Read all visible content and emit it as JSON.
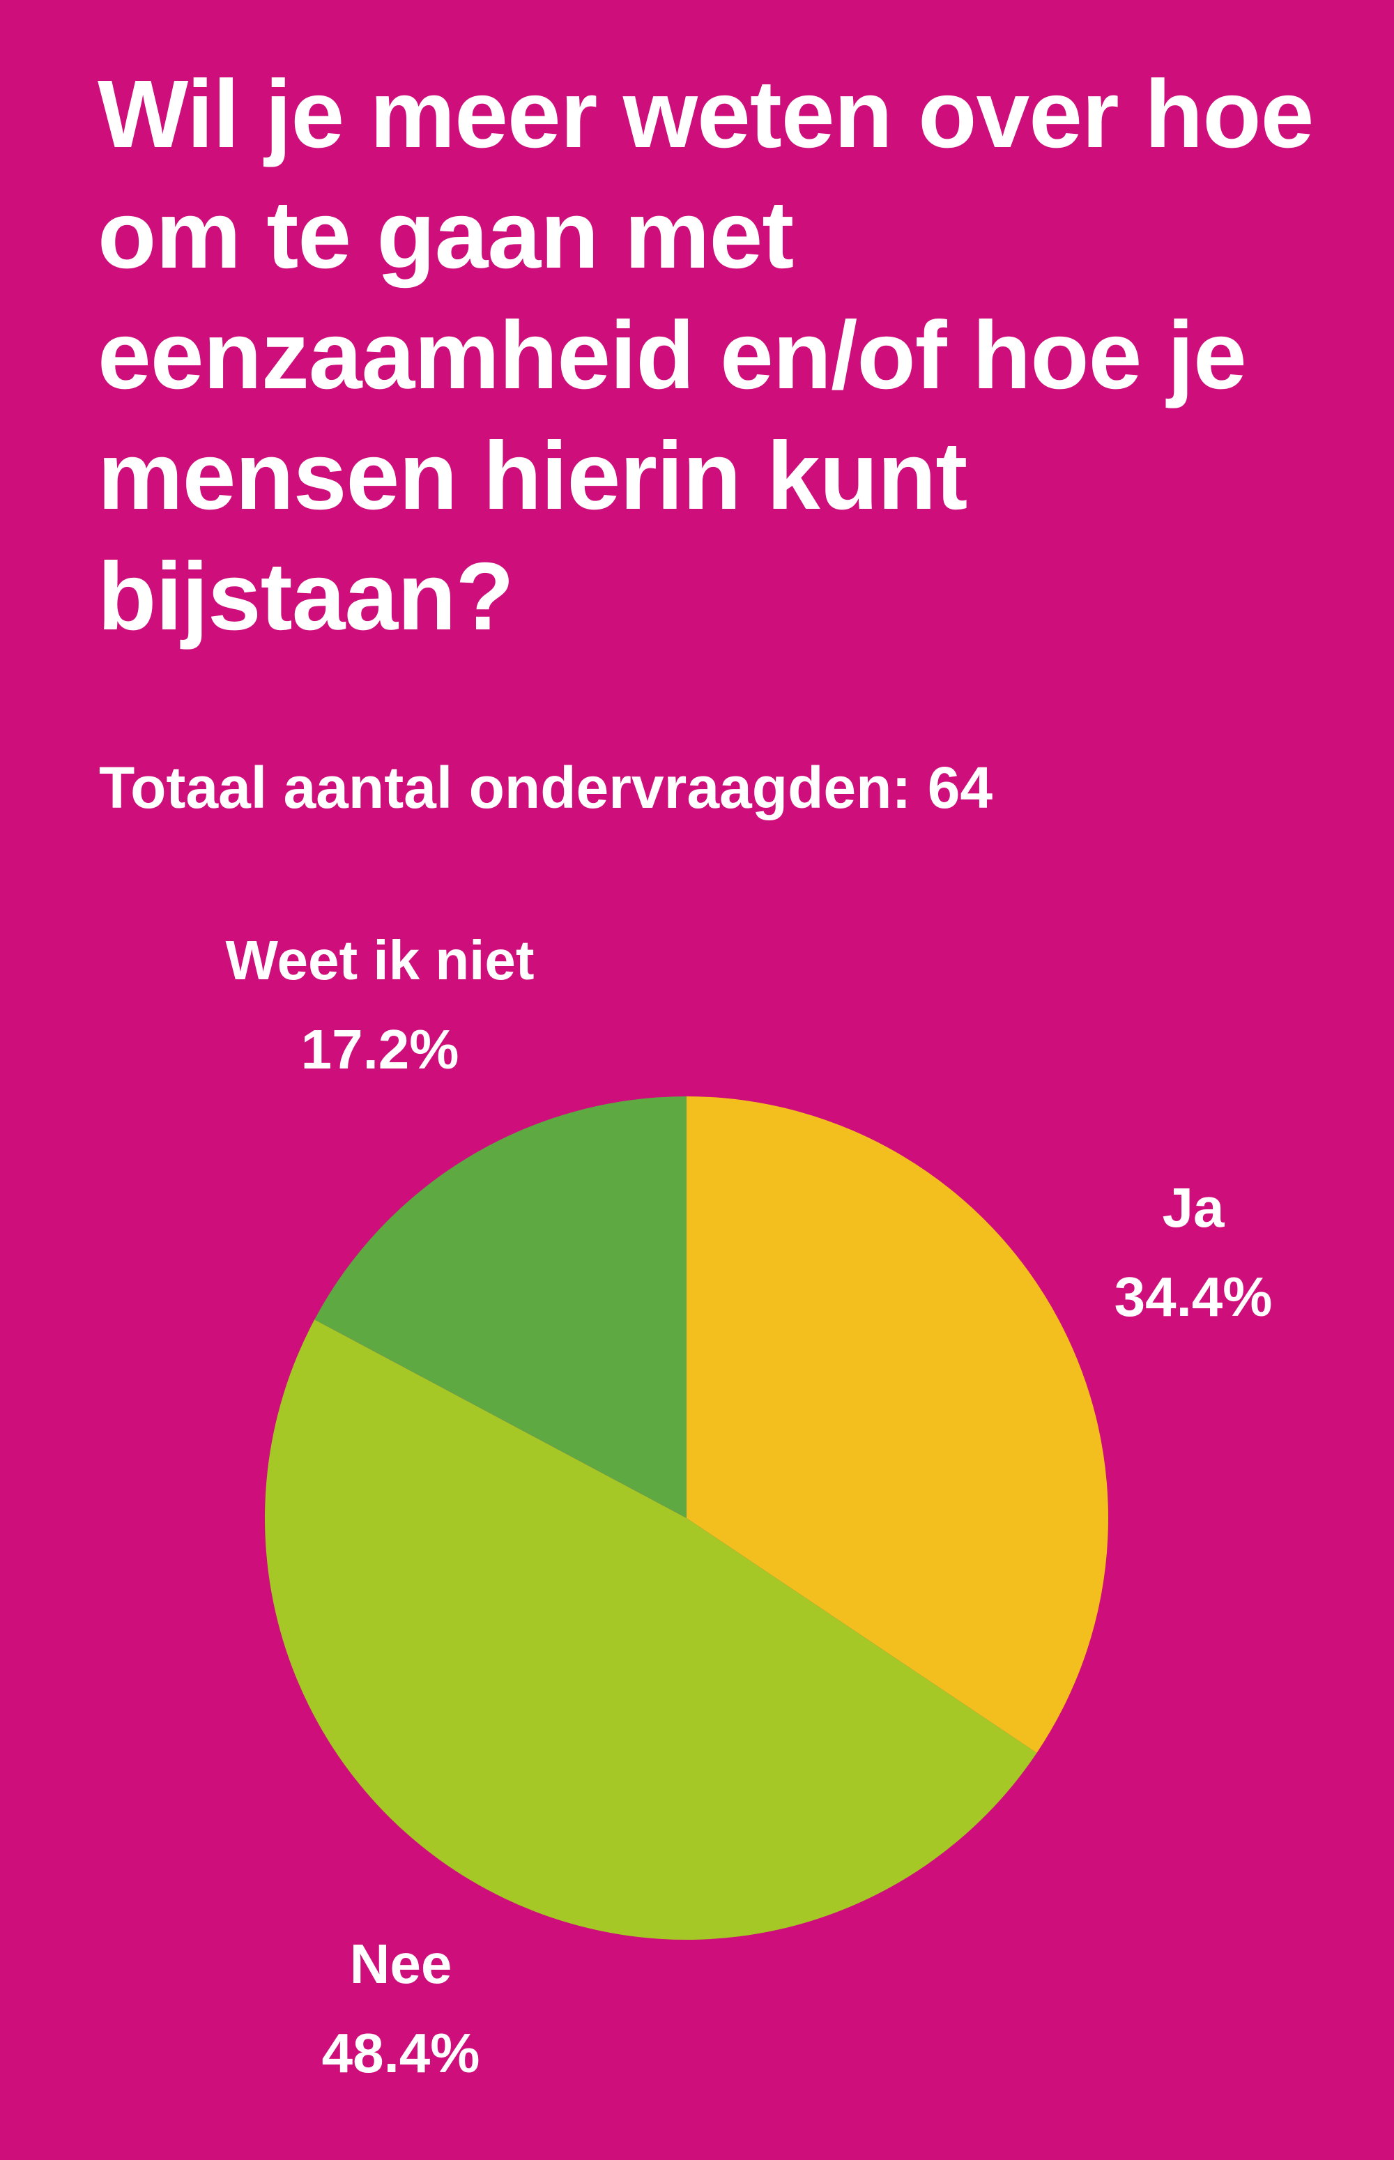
{
  "title": "Wil je meer weten over hoe om te gaan met eenzaamheid en/of hoe je mensen hierin kunt bijstaan?",
  "subtitle": "Totaal aantal ondervraagden: 64",
  "colors": {
    "background": "#CE0E7B",
    "text": "#FFFFFF"
  },
  "chart_data": {
    "type": "pie",
    "slices": [
      {
        "label": "Ja",
        "value": 34.4,
        "value_label": "34.4%",
        "color": "#F3BF1F"
      },
      {
        "label": "Nee",
        "value": 48.4,
        "value_label": "48.4%",
        "color": "#A6C826"
      },
      {
        "label": "Weet ik niet",
        "value": 17.2,
        "value_label": "17.2%",
        "color": "#5FA943"
      }
    ],
    "start_angle": "12 o'clock",
    "direction": "clockwise",
    "labels_outside": true
  }
}
